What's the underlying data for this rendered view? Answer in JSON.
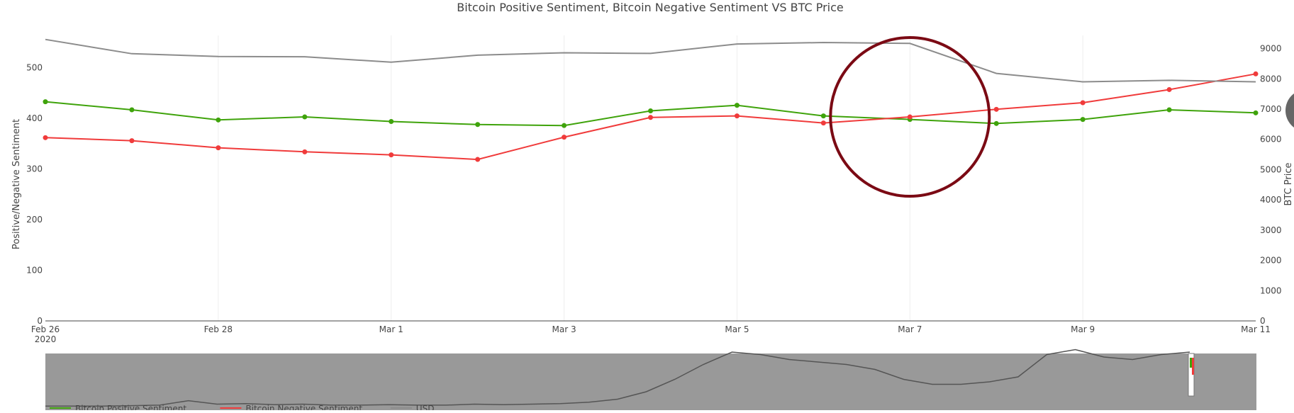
{
  "chart_data": {
    "type": "line",
    "title": "Bitcoin Positive Sentiment, Bitcoin Negative Sentiment VS BTC Price",
    "ylabel": "Positive/Negative Sentiment",
    "y2label": "BTC Price",
    "ylim": [
      0,
      550
    ],
    "y2lim": [
      0,
      9200
    ],
    "yticks": [
      0,
      100,
      200,
      300,
      400,
      500
    ],
    "y2ticks": [
      0,
      1000,
      2000,
      3000,
      4000,
      5000,
      6000,
      7000,
      8000,
      9000
    ],
    "xlim": [
      "2020-02-26",
      "2020-03-11"
    ],
    "xticks": [
      {
        "date": "2020-02-26",
        "label": "Feb 26",
        "sublabel": "2020"
      },
      {
        "date": "2020-02-28",
        "label": "Feb 28",
        "sublabel": ""
      },
      {
        "date": "2020-03-01",
        "label": "Mar 1",
        "sublabel": ""
      },
      {
        "date": "2020-03-03",
        "label": "Mar 3",
        "sublabel": ""
      },
      {
        "date": "2020-03-05",
        "label": "Mar 5",
        "sublabel": ""
      },
      {
        "date": "2020-03-07",
        "label": "Mar 7",
        "sublabel": ""
      },
      {
        "date": "2020-03-09",
        "label": "Mar 9",
        "sublabel": ""
      },
      {
        "date": "2020-03-11",
        "label": "Mar 11",
        "sublabel": ""
      }
    ],
    "x": [
      "2020-02-26",
      "2020-02-27",
      "2020-02-28",
      "2020-02-29",
      "2020-03-01",
      "2020-03-02",
      "2020-03-03",
      "2020-03-04",
      "2020-03-05",
      "2020-03-06",
      "2020-03-07",
      "2020-03-08",
      "2020-03-09",
      "2020-03-10",
      "2020-03-11"
    ],
    "grid": true,
    "series": [
      {
        "name": "Bitcoin Positive Sentiment",
        "axis": "left",
        "color": "#3fa30b",
        "markers": true,
        "values": [
          433,
          417,
          397,
          403,
          394,
          388,
          386,
          415,
          426,
          405,
          398,
          390,
          398,
          417,
          411
        ]
      },
      {
        "name": "Bitcoin Negative Sentiment",
        "axis": "left",
        "color": "#f03b3b",
        "markers": true,
        "values": [
          362,
          356,
          342,
          334,
          328,
          319,
          363,
          402,
          405,
          391,
          403,
          418,
          431,
          457,
          488
        ]
      },
      {
        "name": "USD",
        "axis": "right",
        "color": "#8c8c8c",
        "markers": false,
        "values": [
          9300,
          8830,
          8740,
          8730,
          8550,
          8780,
          8860,
          8840,
          9150,
          9200,
          9170,
          8180,
          7900,
          7950,
          7900
        ]
      }
    ],
    "annotation": {
      "shape": "circle",
      "color": "#7b0a14",
      "center_date": "2020-03-07"
    },
    "rangeslider": {
      "legend": [
        "Bitcoin Positive Sentiment",
        "Bitcoin Negative Sentiment",
        "USD"
      ],
      "history_values": [
        0.01,
        0.01,
        0.012,
        0.02,
        0.03,
        0.12,
        0.05,
        0.06,
        0.04,
        0.05,
        0.03,
        0.03,
        0.04,
        0.03,
        0.03,
        0.05,
        0.04,
        0.05,
        0.06,
        0.09,
        0.15,
        0.3,
        0.55,
        0.85,
        1.1,
        1.05,
        0.95,
        0.9,
        0.85,
        0.75,
        0.55,
        0.45,
        0.45,
        0.5,
        0.6,
        1.05,
        1.15,
        1.0,
        0.95,
        1.05,
        1.1
      ]
    },
    "side_button_color": "#666666"
  }
}
